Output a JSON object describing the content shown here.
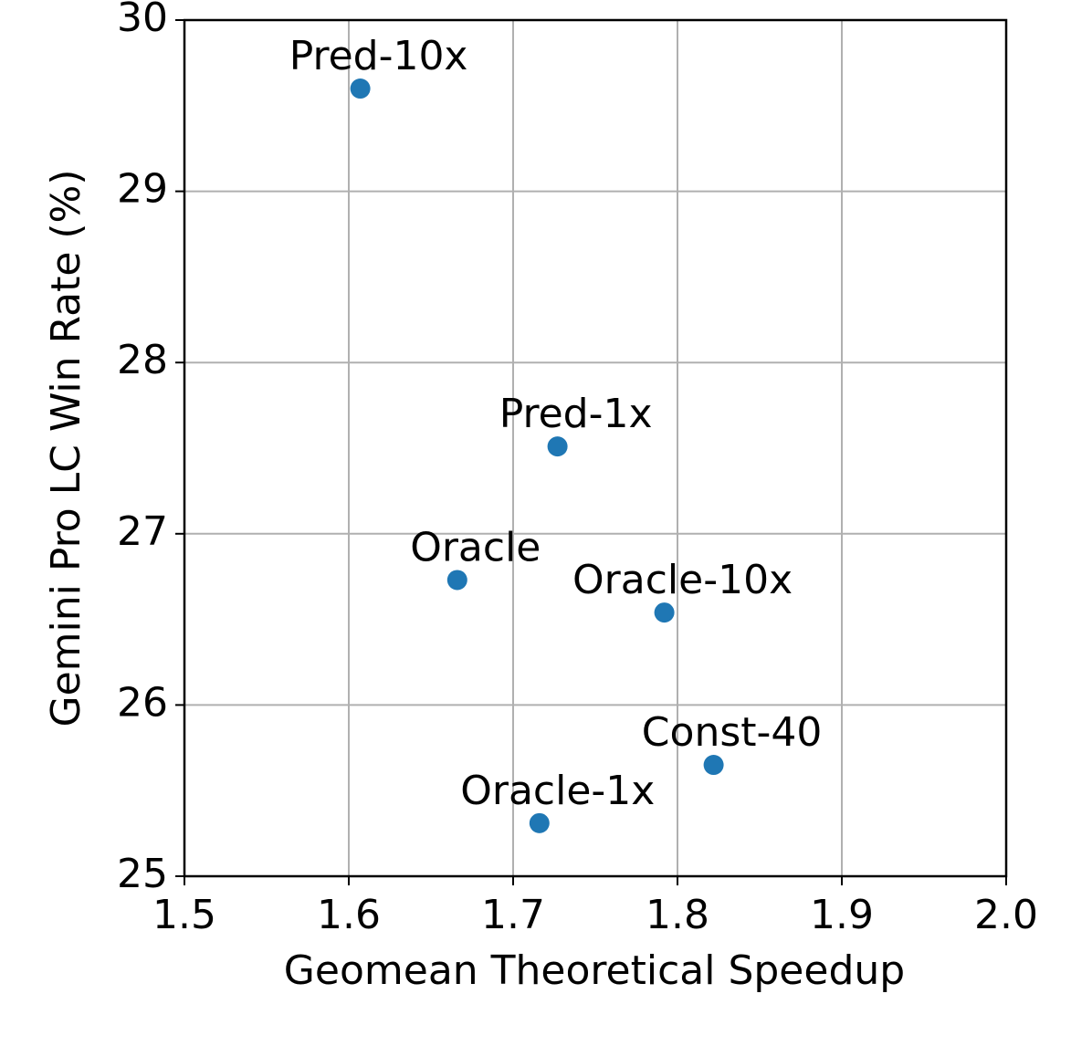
{
  "chart_data": {
    "type": "scatter",
    "xlabel": "Geomean Theoretical Speedup",
    "ylabel": "Gemini Pro LC Win Rate (%)",
    "x": [
      1.607,
      1.727,
      1.666,
      1.792,
      1.822,
      1.716
    ],
    "values": [
      29.6,
      27.51,
      26.73,
      26.54,
      25.65,
      25.31
    ],
    "point_labels": [
      "Pred-10x",
      "Pred-1x",
      "Oracle",
      "Oracle-10x",
      "Const-40",
      "Oracle-1x"
    ],
    "color": "#1f77b4",
    "xlim": [
      1.5,
      2.0
    ],
    "ylim": [
      25,
      30
    ],
    "xticks": [
      1.5,
      1.6,
      1.7,
      1.8,
      1.9,
      {
        "value": 2,
        "label": "2.0"
      }
    ],
    "yticks": [
      25,
      26,
      27,
      28,
      29,
      30
    ],
    "grid": true
  }
}
